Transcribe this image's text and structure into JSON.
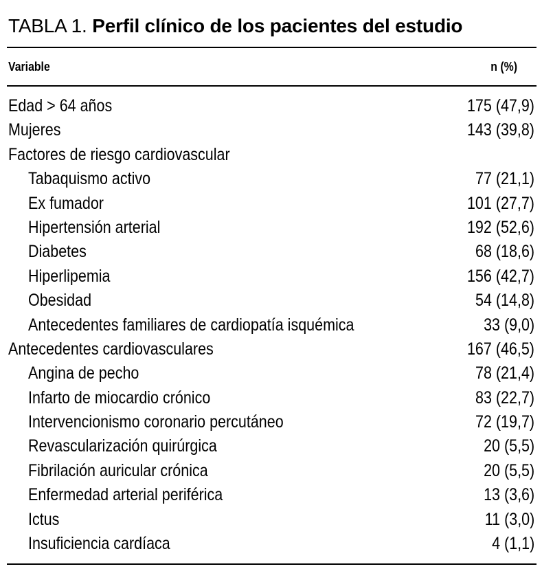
{
  "table": {
    "label": "TABLA 1.",
    "title": "Perfil clínico de los pacientes del estudio",
    "headers": {
      "variable": "Variable",
      "n": "n  (%)"
    },
    "rows": [
      {
        "variable": "Edad > 64 años",
        "value": "175 (47,9)"
      },
      {
        "variable": "Mujeres",
        "value": "143 (39,8)"
      },
      {
        "variable": "Factores de riesgo cardiovascular",
        "value": ""
      },
      {
        "variable": "Tabaquismo activo",
        "value": "77 (21,1)"
      },
      {
        "variable": "Ex fumador",
        "value": "101 (27,7)"
      },
      {
        "variable": "Hipertensión arterial",
        "value": "192 (52,6)"
      },
      {
        "variable": "Diabetes",
        "value": "68 (18,6)"
      },
      {
        "variable": "Hiperlipemia",
        "value": "156 (42,7)"
      },
      {
        "variable": "Obesidad",
        "value": "54 (14,8)"
      },
      {
        "variable": "Antecedentes familiares de cardiopatía isquémica",
        "value": "33 (9,0)"
      },
      {
        "variable": "Antecedentes cardiovasculares",
        "value": "167 (46,5)"
      },
      {
        "variable": "Angina de pecho",
        "value": "78 (21,4)"
      },
      {
        "variable": "Infarto de miocardio crónico",
        "value": "83 (22,7)"
      },
      {
        "variable": "Intervencionismo coronario percutáneo",
        "value": "72 (19,7)"
      },
      {
        "variable": "Revascularización quirúrgica",
        "value": "20 (5,5)"
      },
      {
        "variable": "Fibrilación auricular crónica",
        "value": "20 (5,5)"
      },
      {
        "variable": "Enfermedad arterial periférica",
        "value": "13 (3,6)"
      },
      {
        "variable": "Ictus",
        "value": "11 (3,0)"
      },
      {
        "variable": "Insuficiencia cardíaca",
        "value": "4 (1,1)"
      }
    ]
  }
}
